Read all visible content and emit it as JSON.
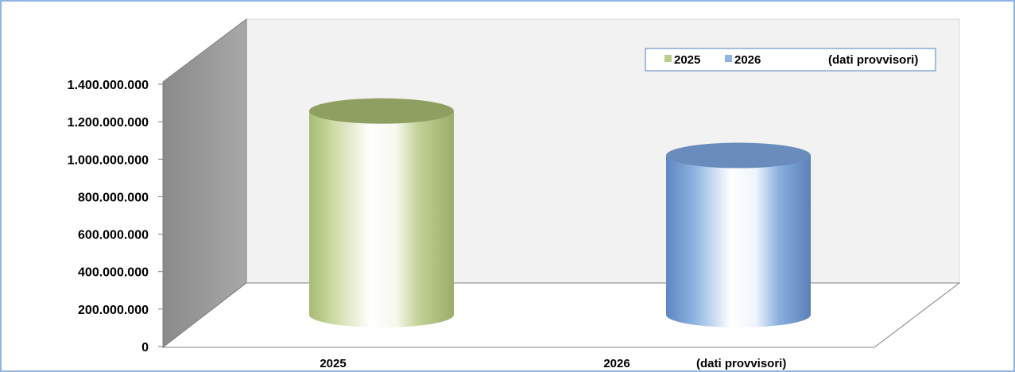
{
  "chart_data": {
    "type": "bar",
    "categories": [
      "2025",
      "2026"
    ],
    "category_notes": [
      "",
      "(dati provvisori)"
    ],
    "values": [
      1325000000,
      1088000000
    ],
    "series": [
      {
        "name": "2025",
        "color": "#b9cc8a"
      },
      {
        "name": "2026",
        "color": "#8eb4e2"
      }
    ],
    "legend": {
      "entries": [
        "2025",
        "2026"
      ],
      "note": "(dati provvisori)",
      "position": "top-right"
    },
    "ylim": [
      0,
      1400000000
    ],
    "ytick_labels": [
      "0",
      "200.000.000",
      "400.000.000",
      "600.000.000",
      "800.000.000",
      "1.000.000.000",
      "1.200.000.000",
      "1.400.000.000"
    ],
    "bar_shape": "3d-cylinder",
    "grid": false,
    "title": "",
    "xlabel": "",
    "ylabel": ""
  }
}
